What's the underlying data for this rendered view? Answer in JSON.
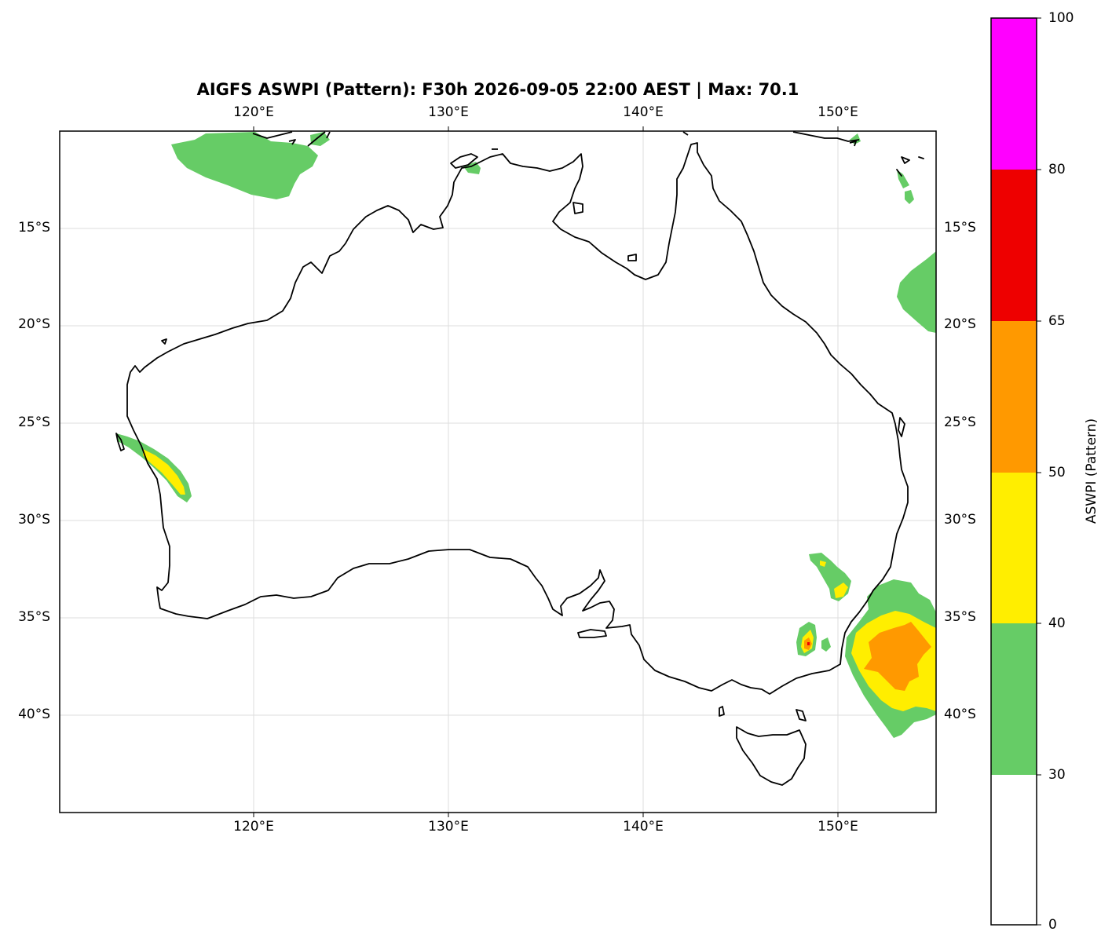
{
  "map": {
    "title": "AIGFS ASWPI (Pattern): F30h 2026-09-05 22:00 AEST | Max: 70.1",
    "lon_labels": [
      "120°E",
      "130°E",
      "140°E",
      "150°E"
    ],
    "lat_labels": [
      "15°S",
      "20°S",
      "25°S",
      "30°S",
      "35°S",
      "40°S"
    ],
    "lon_range": [
      110,
      155
    ],
    "lat_range": [
      -10,
      -45
    ],
    "grid": true
  },
  "colorbar": {
    "label": "ASWPI (Pattern)",
    "ticks": [
      "0",
      "30",
      "40",
      "50",
      "65",
      "80",
      "100"
    ],
    "levels": [
      {
        "from": 0,
        "to": 30,
        "color": "#ffffff"
      },
      {
        "from": 30,
        "to": 40,
        "color": "#66cc66"
      },
      {
        "from": 40,
        "to": 50,
        "color": "#ffee00"
      },
      {
        "from": 50,
        "to": 65,
        "color": "#ff9900"
      },
      {
        "from": 65,
        "to": 80,
        "color": "#ee0000"
      },
      {
        "from": 80,
        "to": 100,
        "color": "#ff00ff"
      }
    ]
  },
  "colors": {
    "coast": "#000000",
    "grid": "#dddddd"
  }
}
